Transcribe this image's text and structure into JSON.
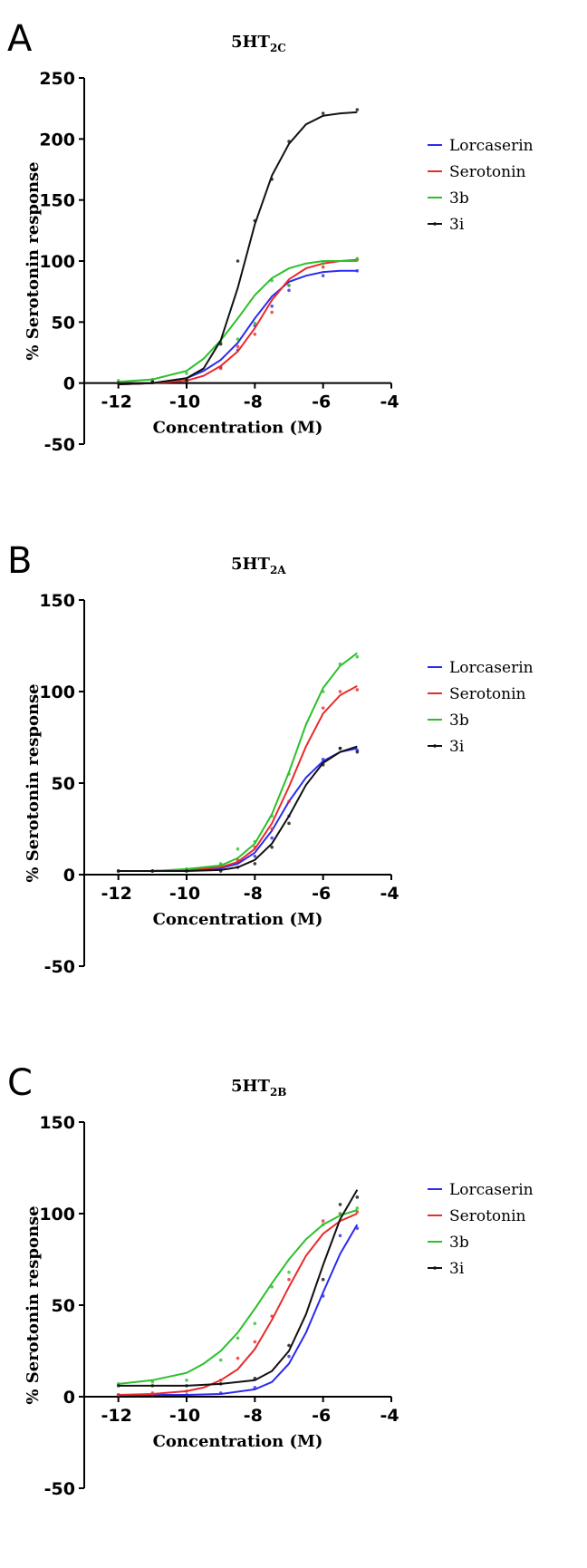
{
  "panels": [
    {
      "letter": "A",
      "title_main": "5HT",
      "title_sub": "2C"
    },
    {
      "letter": "B",
      "title_main": "5HT",
      "title_sub": "2A"
    },
    {
      "letter": "C",
      "title_main": "5HT",
      "title_sub": "2B"
    }
  ],
  "chart_data": [
    {
      "type": "line",
      "title": "5HT2C",
      "xlabel": "Concentration (M)",
      "ylabel": "% Serotonin response",
      "xlim": [
        -13,
        -4
      ],
      "ylim": [
        -50,
        250
      ],
      "xticks": [
        -12,
        -10,
        -8,
        -6,
        -4
      ],
      "yticks": [
        -50,
        0,
        50,
        100,
        150,
        200,
        250
      ],
      "legend_position": "right",
      "series": [
        {
          "name": "Lorcaserin",
          "color": "#2b2bf0",
          "curve": {
            "x": [
              -12,
              -11,
              -10,
              -9.5,
              -9,
              -8.5,
              -8,
              -7.5,
              -7,
              -6.5,
              -6,
              -5.5,
              -5
            ],
            "y": [
              -1,
              0,
              4,
              10,
              19,
              33,
              53,
              71,
              83,
              88,
              91,
              92,
              92
            ]
          },
          "points": {
            "x": [
              -12,
              -11,
              -10,
              -9,
              -8.5,
              -8,
              -7.5,
              -7,
              -6,
              -5
            ],
            "y": [
              0,
              1,
              3,
              13,
              27,
              47,
              63,
              76,
              88,
              92
            ]
          }
        },
        {
          "name": "Serotonin",
          "color": "#e82b2b",
          "curve": {
            "x": [
              -12,
              -11,
              -10,
              -9.5,
              -9,
              -8.5,
              -8,
              -7.5,
              -7,
              -6.5,
              -6,
              -5.5,
              -5
            ],
            "y": [
              -1,
              0,
              2,
              6,
              14,
              26,
              45,
              68,
              85,
              94,
              98,
              100,
              101
            ]
          },
          "points": {
            "x": [
              -12,
              -11,
              -10,
              -9,
              -8.5,
              -8,
              -7.5,
              -7,
              -6,
              -5
            ],
            "y": [
              0,
              1,
              3,
              12,
              30,
              40,
              58,
              80,
              95,
              101
            ]
          }
        },
        {
          "name": "3b",
          "color": "#2bc02b",
          "curve": {
            "x": [
              -12,
              -11,
              -10,
              -9.5,
              -9,
              -8.5,
              -8,
              -7.5,
              -7,
              -6.5,
              -6,
              -5.5,
              -5
            ],
            "y": [
              1,
              3,
              10,
              20,
              35,
              53,
              72,
              86,
              94,
              98,
              100,
              100,
              100
            ]
          },
          "points": {
            "x": [
              -12,
              -11,
              -10,
              -9,
              -8.5,
              -8,
              -7.5,
              -7,
              -6,
              -5
            ],
            "y": [
              2,
              3,
              8,
              34,
              36,
              49,
              84,
              80,
              98,
              102
            ]
          }
        },
        {
          "name": "3i",
          "color": "#111111",
          "curve": {
            "x": [
              -12,
              -11,
              -10,
              -9.5,
              -9,
              -8.5,
              -8,
              -7.5,
              -7,
              -6.5,
              -6,
              -5.5,
              -5
            ],
            "y": [
              -1,
              0,
              4,
              12,
              35,
              78,
              130,
              170,
              196,
              212,
              219,
              221,
              222
            ]
          },
          "points": {
            "x": [
              -12,
              -11,
              -10,
              -9,
              -8.5,
              -8,
              -7.5,
              -7,
              -6,
              -5
            ],
            "y": [
              0,
              1,
              2,
              32,
              100,
              133,
              167,
              198,
              221,
              224
            ]
          }
        }
      ]
    },
    {
      "type": "line",
      "title": "5HT2A",
      "xlabel": "Concentration (M)",
      "ylabel": "% Serotonin response",
      "xlim": [
        -13,
        -4
      ],
      "ylim": [
        -50,
        150
      ],
      "xticks": [
        -12,
        -10,
        -8,
        -6,
        -4
      ],
      "yticks": [
        -50,
        0,
        50,
        100,
        150
      ],
      "legend_position": "right",
      "series": [
        {
          "name": "Lorcaserin",
          "color": "#2b2bf0",
          "curve": {
            "x": [
              -12,
              -11,
              -10,
              -9,
              -8.5,
              -8,
              -7.5,
              -7,
              -6.5,
              -6,
              -5.5,
              -5
            ],
            "y": [
              2,
              2,
              2.5,
              3.5,
              6,
              12,
              24,
              40,
              53,
              62,
              67,
              69
            ]
          },
          "points": {
            "x": [
              -12,
              -11,
              -10,
              -9,
              -8.5,
              -8,
              -7.5,
              -7,
              -6,
              -5.5,
              -5
            ],
            "y": [
              2,
              2,
              2,
              3,
              7,
              10,
              20,
              32,
              63,
              69,
              68
            ]
          }
        },
        {
          "name": "Serotonin",
          "color": "#e82b2b",
          "curve": {
            "x": [
              -12,
              -11,
              -10,
              -9,
              -8.5,
              -8,
              -7.5,
              -7,
              -6.5,
              -6,
              -5.5,
              -5
            ],
            "y": [
              2,
              2,
              2.5,
              4,
              7,
              14,
              28,
              48,
              70,
              88,
              98,
              103
            ]
          },
          "points": {
            "x": [
              -12,
              -11,
              -10,
              -9,
              -8.5,
              -8,
              -7.5,
              -7,
              -6,
              -5.5,
              -5
            ],
            "y": [
              2,
              2,
              3,
              5,
              8,
              15,
              25,
              40,
              91,
              100,
              101
            ]
          }
        },
        {
          "name": "3b",
          "color": "#2bc02b",
          "curve": {
            "x": [
              -12,
              -11,
              -10,
              -9,
              -8.5,
              -8,
              -7.5,
              -7,
              -6.5,
              -6,
              -5.5,
              -5
            ],
            "y": [
              2,
              2,
              3,
              5,
              9,
              17,
              33,
              56,
              82,
              102,
              114,
              121
            ]
          },
          "points": {
            "x": [
              -12,
              -11,
              -10,
              -9,
              -8.5,
              -8,
              -7.5,
              -7,
              -6,
              -5.5,
              -5
            ],
            "y": [
              2,
              2,
              3,
              6,
              14,
              18,
              32,
              55,
              100,
              115,
              119
            ]
          }
        },
        {
          "name": "3i",
          "color": "#111111",
          "curve": {
            "x": [
              -12,
              -11,
              -10,
              -9,
              -8.5,
              -8,
              -7.5,
              -7,
              -6.5,
              -6,
              -5.5,
              -5
            ],
            "y": [
              2,
              2,
              2,
              2.5,
              4,
              8,
              17,
              32,
              49,
              61,
              67,
              70
            ]
          },
          "points": {
            "x": [
              -12,
              -11,
              -10,
              -9,
              -8.5,
              -8,
              -7.5,
              -7,
              -6,
              -5.5,
              -5
            ],
            "y": [
              2,
              2,
              2,
              2,
              4,
              6,
              15,
              28,
              60,
              69,
              67
            ]
          }
        }
      ]
    },
    {
      "type": "line",
      "title": "5HT2B",
      "xlabel": "Concentration (M)",
      "ylabel": "% Serotonin response",
      "xlim": [
        -13,
        -4
      ],
      "ylim": [
        -50,
        150
      ],
      "xticks": [
        -12,
        -10,
        -8,
        -6,
        -4
      ],
      "yticks": [
        -50,
        0,
        50,
        100,
        150
      ],
      "legend_position": "right",
      "series": [
        {
          "name": "Lorcaserin",
          "color": "#2b2bf0",
          "curve": {
            "x": [
              -12,
              -11,
              -10,
              -9,
              -8,
              -7.5,
              -7,
              -6.5,
              -6,
              -5.5,
              -5
            ],
            "y": [
              1,
              1,
              1,
              1.5,
              4,
              8,
              18,
              35,
              57,
              78,
              94
            ]
          },
          "points": {
            "x": [
              -12,
              -11,
              -10,
              -9,
              -8,
              -7,
              -6,
              -5.5,
              -5
            ],
            "y": [
              1,
              1,
              1,
              2,
              5,
              22,
              55,
              88,
              92
            ]
          }
        },
        {
          "name": "Serotonin",
          "color": "#e82b2b",
          "curve": {
            "x": [
              -12,
              -11,
              -10,
              -9.5,
              -9,
              -8.5,
              -8,
              -7.5,
              -7,
              -6.5,
              -6,
              -5.5,
              -5
            ],
            "y": [
              1,
              1.5,
              3,
              5,
              9,
              15,
              26,
              42,
              60,
              77,
              89,
              96,
              100
            ]
          },
          "points": {
            "x": [
              -12,
              -11,
              -10,
              -9,
              -8.5,
              -8,
              -7.5,
              -7,
              -6,
              -5.5,
              -5
            ],
            "y": [
              1,
              2,
              3,
              9,
              21,
              30,
              44,
              64,
              96,
              100,
              101
            ]
          }
        },
        {
          "name": "3b",
          "color": "#2bc02b",
          "curve": {
            "x": [
              -12,
              -11,
              -10,
              -9.5,
              -9,
              -8.5,
              -8,
              -7.5,
              -7,
              -6.5,
              -6,
              -5.5,
              -5
            ],
            "y": [
              7,
              9,
              13,
              18,
              25,
              35,
              48,
              62,
              75,
              86,
              94,
              99,
              102
            ]
          },
          "points": {
            "x": [
              -12,
              -11,
              -10,
              -9,
              -8.5,
              -8,
              -7.5,
              -7,
              -6,
              -5.5,
              -5
            ],
            "y": [
              7,
              8,
              9,
              20,
              32,
              40,
              60,
              68,
              94,
              100,
              103
            ]
          }
        },
        {
          "name": "3i",
          "color": "#111111",
          "curve": {
            "x": [
              -12,
              -11,
              -10,
              -9,
              -8,
              -7.5,
              -7,
              -6.5,
              -6,
              -5.5,
              -5
            ],
            "y": [
              6,
              6,
              6,
              7,
              9,
              14,
              25,
              45,
              72,
              97,
              113
            ]
          },
          "points": {
            "x": [
              -12,
              -11,
              -10,
              -9,
              -8,
              -7,
              -6,
              -5.5,
              -5
            ],
            "y": [
              6,
              6,
              6,
              7,
              10,
              28,
              64,
              105,
              109
            ]
          }
        }
      ]
    }
  ]
}
